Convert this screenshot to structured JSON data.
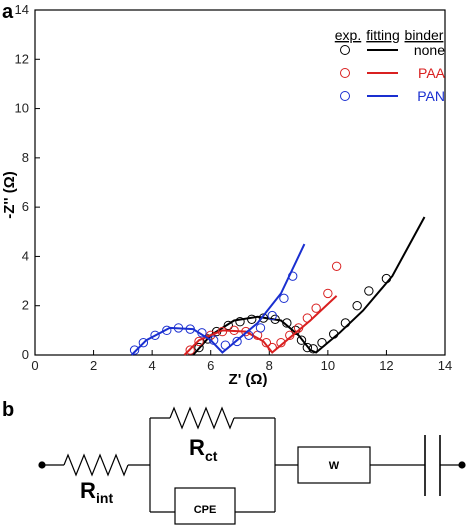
{
  "panel_a_label": "a",
  "panel_b_label": "b",
  "chart_data": {
    "type": "scatter",
    "xlabel": "Z' (Ω)",
    "ylabel": "-Z'' (Ω)",
    "xlim": [
      0,
      14
    ],
    "ylim": [
      0,
      14
    ],
    "xticks": [
      "0",
      "2",
      "4",
      "6",
      "8",
      "10",
      "12",
      "14"
    ],
    "yticks": [
      "0",
      "2",
      "4",
      "6",
      "8",
      "10",
      "12",
      "14"
    ],
    "grid": false,
    "legend_position": "top-right",
    "legend_headers": [
      "exp.",
      "fitting",
      "binder"
    ],
    "series": [
      {
        "name": "none",
        "color": "#000000",
        "exp": [
          [
            5.6,
            0.3
          ],
          [
            5.9,
            0.65
          ],
          [
            6.2,
            0.95
          ],
          [
            6.6,
            1.2
          ],
          [
            7.0,
            1.35
          ],
          [
            7.4,
            1.45
          ],
          [
            7.8,
            1.5
          ],
          [
            8.2,
            1.45
          ],
          [
            8.6,
            1.3
          ],
          [
            8.9,
            1.0
          ],
          [
            9.1,
            0.6
          ],
          [
            9.3,
            0.3
          ],
          [
            9.5,
            0.25
          ],
          [
            9.8,
            0.5
          ],
          [
            10.2,
            0.85
          ],
          [
            10.6,
            1.3
          ],
          [
            11.0,
            2.0
          ],
          [
            11.4,
            2.6
          ],
          [
            12.0,
            3.1
          ]
        ],
        "fit": [
          [
            5.4,
            0.0
          ],
          [
            6.0,
            0.8
          ],
          [
            6.8,
            1.4
          ],
          [
            7.6,
            1.55
          ],
          [
            8.4,
            1.4
          ],
          [
            9.0,
            0.8
          ],
          [
            9.4,
            0.2
          ],
          [
            9.6,
            0.1
          ],
          [
            10.4,
            0.9
          ],
          [
            11.2,
            1.8
          ],
          [
            12.2,
            3.2
          ],
          [
            13.3,
            5.6
          ]
        ]
      },
      {
        "name": "PAA",
        "color": "#d92020",
        "exp": [
          [
            5.3,
            0.2
          ],
          [
            5.6,
            0.55
          ],
          [
            6.0,
            0.8
          ],
          [
            6.4,
            0.95
          ],
          [
            6.8,
            1.0
          ],
          [
            7.2,
            0.95
          ],
          [
            7.6,
            0.8
          ],
          [
            7.9,
            0.5
          ],
          [
            8.1,
            0.3
          ],
          [
            8.4,
            0.5
          ],
          [
            8.7,
            0.8
          ],
          [
            9.0,
            1.1
          ],
          [
            9.3,
            1.5
          ],
          [
            9.6,
            1.9
          ],
          [
            10.0,
            2.5
          ],
          [
            10.3,
            3.6
          ]
        ],
        "fit": [
          [
            5.1,
            0.0
          ],
          [
            5.6,
            0.6
          ],
          [
            6.4,
            1.0
          ],
          [
            7.2,
            0.95
          ],
          [
            7.8,
            0.55
          ],
          [
            8.1,
            0.1
          ],
          [
            8.6,
            0.6
          ],
          [
            9.4,
            1.4
          ],
          [
            10.3,
            2.4
          ]
        ]
      },
      {
        "name": "PAN",
        "color": "#1a2fd0",
        "exp": [
          [
            3.4,
            0.2
          ],
          [
            3.7,
            0.5
          ],
          [
            4.1,
            0.8
          ],
          [
            4.5,
            1.0
          ],
          [
            4.9,
            1.1
          ],
          [
            5.3,
            1.05
          ],
          [
            5.7,
            0.9
          ],
          [
            6.1,
            0.6
          ],
          [
            6.5,
            0.4
          ],
          [
            6.9,
            0.55
          ],
          [
            7.3,
            0.8
          ],
          [
            7.7,
            1.1
          ],
          [
            8.1,
            1.6
          ],
          [
            8.5,
            2.3
          ],
          [
            8.8,
            3.2
          ]
        ],
        "fit": [
          [
            3.3,
            0.0
          ],
          [
            3.8,
            0.6
          ],
          [
            4.6,
            1.1
          ],
          [
            5.4,
            1.05
          ],
          [
            6.0,
            0.6
          ],
          [
            6.4,
            0.1
          ],
          [
            6.9,
            0.6
          ],
          [
            7.6,
            1.3
          ],
          [
            8.4,
            2.5
          ],
          [
            9.2,
            4.5
          ]
        ]
      }
    ]
  },
  "circuit": {
    "r_int_main": "R",
    "r_int_sub": "int",
    "r_ct_main": "R",
    "r_ct_sub": "ct",
    "cpe_label": "CPE",
    "w_label": "W"
  }
}
